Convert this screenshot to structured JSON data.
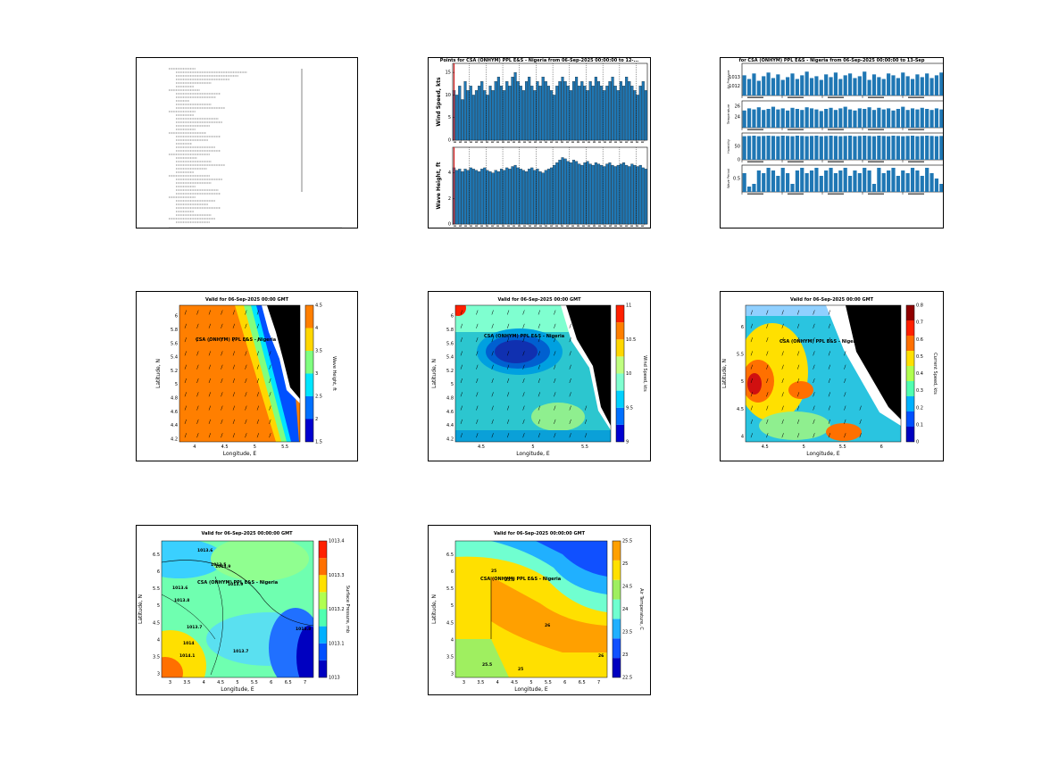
{
  "colors": {
    "bar": "#1f77b4",
    "marker": "#d62728",
    "land": "#000000"
  },
  "panel_text": {
    "location": "CSA (ONHYM) PPL E&S - Nigeria",
    "country": "Nigeria"
  },
  "chart_data": [
    {
      "type": "table",
      "title": "",
      "rows": []
    },
    {
      "type": "bar",
      "title": "Points for CSA (ONHYM) PPL E&S - Nigeria from 06-Sep-2025 00:00:00 to 12-...",
      "series": [
        {
          "name": "Wind Speed, kts",
          "ylim": [
            0,
            17
          ],
          "yticks": [
            0,
            5,
            10,
            15
          ],
          "values": [
            11,
            10,
            12,
            9,
            13,
            11,
            12,
            10,
            11,
            12,
            13,
            11,
            10,
            12,
            11,
            13,
            14,
            12,
            11,
            13,
            12,
            14,
            15,
            13,
            12,
            11,
            13,
            14,
            12,
            11,
            13,
            12,
            14,
            13,
            12,
            11,
            10,
            12,
            13,
            14,
            13,
            12,
            11,
            13,
            14,
            12,
            13,
            12,
            11,
            13,
            12,
            14,
            13,
            12,
            11,
            12,
            13,
            14,
            12,
            11,
            13,
            12,
            14,
            13,
            12,
            11,
            10,
            12,
            13,
            11
          ]
        },
        {
          "name": "Wave Height, ft",
          "ylim": [
            0,
            6
          ],
          "yticks": [
            0,
            2,
            4
          ],
          "values": [
            4.4,
            4.2,
            4.3,
            4.1,
            4.3,
            4.2,
            4.4,
            4.3,
            4.2,
            4.1,
            4.3,
            4.4,
            4.2,
            4.1,
            4.0,
            4.2,
            4.1,
            4.3,
            4.2,
            4.4,
            4.3,
            4.5,
            4.6,
            4.4,
            4.3,
            4.2,
            4.1,
            4.3,
            4.4,
            4.2,
            4.3,
            4.1,
            4.0,
            4.2,
            4.3,
            4.4,
            4.6,
            4.8,
            5.0,
            5.2,
            5.1,
            4.9,
            4.8,
            5.0,
            4.9,
            4.7,
            4.6,
            4.8,
            4.9,
            4.7,
            4.6,
            4.8,
            4.7,
            4.6,
            4.5,
            4.7,
            4.8,
            4.6,
            4.5,
            4.6,
            4.7,
            4.8,
            4.6,
            4.5,
            4.7,
            4.6,
            4.5,
            4.6,
            4.4,
            4.3
          ]
        }
      ]
    },
    {
      "type": "bar",
      "title": "for CSA (ONHYM) PPL E&S - Nigeria from 06-Sep-2025 00:00:00 to 13-Sep",
      "series": [
        {
          "name": "Air Pressure",
          "ylim": [
            1011,
            1014.5
          ],
          "yticks": [
            1012,
            1013
          ],
          "values": [
            1013.2,
            1012.8,
            1013.4,
            1012.6,
            1013.1,
            1013.5,
            1012.9,
            1013.3,
            1012.7,
            1013.0,
            1013.4,
            1012.8,
            1013.2,
            1013.6,
            1012.9,
            1013.1,
            1012.7,
            1013.3,
            1013.0,
            1013.5,
            1012.8,
            1013.2,
            1013.4,
            1012.9,
            1013.1,
            1013.6,
            1012.7,
            1013.3,
            1013.0,
            1012.8,
            1013.4,
            1013.2,
            1012.9,
            1013.5,
            1013.1,
            1012.8,
            1013.3,
            1013.0,
            1013.4,
            1012.9,
            1013.2,
            1013.5
          ]
        },
        {
          "name": "Temperature",
          "ylim": [
            22,
            27
          ],
          "yticks": [
            24,
            26
          ],
          "values": [
            25.2,
            25.6,
            25.4,
            25.8,
            25.3,
            25.5,
            25.9,
            25.4,
            25.6,
            25.2,
            25.7,
            25.5,
            25.3,
            25.8,
            25.6,
            25.4,
            25.1,
            25.5,
            25.7,
            25.3,
            25.6,
            25.9,
            25.4,
            25.2,
            25.6,
            25.5,
            25.8,
            25.3,
            25.7,
            25.4,
            25.6,
            25.2,
            25.5,
            25.9,
            25.3,
            25.6,
            25.4,
            25.7,
            25.5,
            25.3,
            25.6,
            25.4
          ]
        },
        {
          "name": "Humidity",
          "ylim": [
            0,
            100
          ],
          "yticks": [
            0,
            50
          ],
          "values": [
            88,
            89,
            90,
            88,
            89,
            90,
            89,
            88,
            90,
            89,
            88,
            90,
            89,
            88,
            89,
            90,
            88,
            89,
            90,
            89,
            88,
            89,
            90,
            88,
            89,
            90,
            89,
            88,
            90,
            89,
            88,
            90,
            89,
            88,
            89,
            90,
            88,
            89,
            90,
            89,
            88,
            89
          ]
        },
        {
          "name": "Wave Period",
          "ylim": [
            0,
            1
          ],
          "yticks": [
            0.5
          ],
          "values": [
            0.7,
            0.2,
            0.3,
            0.8,
            0.7,
            0.9,
            0.8,
            0.6,
            0.9,
            0.7,
            0.3,
            0.8,
            0.9,
            0.7,
            0.8,
            0.9,
            0.6,
            0.8,
            0.9,
            0.7,
            0.8,
            0.9,
            0.6,
            0.8,
            0.7,
            0.9,
            0.8,
            0.3,
            0.9,
            0.7,
            0.8,
            0.9,
            0.6,
            0.8,
            0.7,
            0.9,
            0.8,
            0.6,
            0.9,
            0.7,
            0.5,
            0.3
          ]
        }
      ]
    },
    {
      "type": "heatmap",
      "title": "Valid for 06-Sep-2025 00:00 GMT",
      "xlabel": "Longitude, E",
      "ylabel": "Latitude, N",
      "colorbar_label": "Wave Height, ft",
      "xticks": [
        "4",
        "4.5",
        "5",
        "5.5"
      ],
      "yticks": [
        "4.2",
        "4.4",
        "4.6",
        "4.8",
        "5",
        "5.2",
        "5.4",
        "5.6",
        "5.8",
        "6"
      ],
      "cticks": [
        "1.5",
        "2",
        "2.5",
        "3",
        "3.5",
        "4",
        "4.5"
      ]
    },
    {
      "type": "heatmap",
      "title": "Valid for 06-Sep-2025 00:00 GMT",
      "xlabel": "Longitude, E",
      "ylabel": "Latitude, N",
      "colorbar_label": "Wind Speed, kts",
      "xticks": [
        "4.5",
        "5",
        "5.5"
      ],
      "yticks": [
        "4.2",
        "4.4",
        "4.6",
        "4.8",
        "5",
        "5.2",
        "5.4",
        "5.6",
        "5.8",
        "6"
      ],
      "cticks": [
        "9",
        "9.5",
        "10",
        "10.5",
        "11"
      ]
    },
    {
      "type": "heatmap",
      "title": "Valid for 06-Sep-2025 00:00 GMT",
      "xlabel": "Longitude, E",
      "ylabel": "Latitude, N",
      "colorbar_label": "Current Speed, kts",
      "xticks": [
        "4.5",
        "5",
        "5.5",
        "6"
      ],
      "yticks": [
        "4",
        "4.5",
        "5",
        "5.5",
        "6"
      ],
      "cticks": [
        "0",
        "0.1",
        "0.2",
        "0.3",
        "0.4",
        "0.5",
        "0.6",
        "0.7",
        "0.8"
      ]
    },
    {
      "type": "heatmap",
      "title": "Valid for 06-Sep-2025 00:00:00 GMT",
      "xlabel": "Longitude, E",
      "ylabel": "Latitude, N",
      "colorbar_label": "Surface Pressure, mb",
      "xticks": [
        "3",
        "3.5",
        "4",
        "4.5",
        "5",
        "5.5",
        "6",
        "6.5",
        "7"
      ],
      "yticks": [
        "3",
        "3.5",
        "4",
        "4.5",
        "5",
        "5.5",
        "6",
        "6.5"
      ],
      "cticks": [
        "1013",
        "1013.1",
        "1013.2",
        "1013.3",
        "1013.4"
      ],
      "contours": [
        "1013.6",
        "1013.5",
        "1013.6",
        "1013.8",
        "1013.9",
        "1013.7",
        "1014",
        "1014.1",
        "1013.9",
        "1013.7",
        "1013.8"
      ]
    },
    {
      "type": "heatmap",
      "title": "Valid for 06-Sep-2025 00:00:00 GMT",
      "xlabel": "Longitude, E",
      "ylabel": "Latitude, N",
      "colorbar_label": "Air Temperature, C",
      "xticks": [
        "3",
        "3.5",
        "4",
        "4.5",
        "5",
        "5.5",
        "6",
        "6.5",
        "7"
      ],
      "yticks": [
        "3",
        "3.5",
        "4",
        "4.5",
        "5",
        "5.5",
        "6",
        "6.5"
      ],
      "cticks": [
        "22.5",
        "23",
        "23.5",
        "24",
        "24.5",
        "25",
        "25.5"
      ],
      "contours": [
        "25",
        "25.5",
        "26",
        "25",
        "25.5",
        "26"
      ]
    }
  ]
}
